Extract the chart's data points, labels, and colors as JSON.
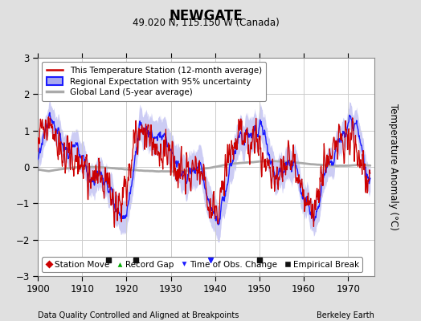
{
  "title": "NEWGATE",
  "subtitle": "49.020 N, 115.150 W (Canada)",
  "xlabel_note": "Data Quality Controlled and Aligned at Breakpoints",
  "xlabel_right": "Berkeley Earth",
  "ylabel": "Temperature Anomaly (°C)",
  "xlim": [
    1900,
    1976
  ],
  "ylim": [
    -3,
    3
  ],
  "yticks": [
    -3,
    -2,
    -1,
    0,
    1,
    2,
    3
  ],
  "xticks": [
    1900,
    1910,
    1920,
    1930,
    1940,
    1950,
    1960,
    1970
  ],
  "background_color": "#e0e0e0",
  "plot_bg_color": "#ffffff",
  "grid_color": "#cccccc",
  "station_line_color": "#cc0000",
  "regional_line_color": "#1a1aff",
  "regional_fill_color": "#aaaaee",
  "global_line_color": "#aaaaaa",
  "empirical_break_years": [
    1916,
    1922,
    1950
  ],
  "time_obs_years": [
    1939
  ],
  "station_move_years": []
}
